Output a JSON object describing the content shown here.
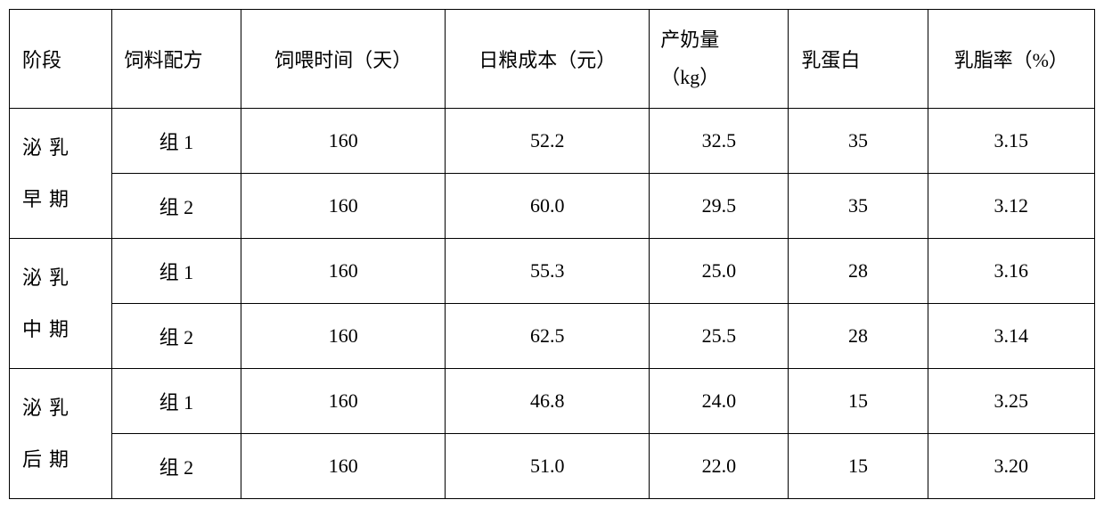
{
  "headers": {
    "stage": "阶段",
    "formula": "饲料配方",
    "days": "饲喂时间（天）",
    "cost": "日粮成本（元）",
    "yield_line1": "产奶量",
    "yield_line2": "（kg）",
    "protein": "乳蛋白",
    "fat": "乳脂率（%）"
  },
  "stages": {
    "early_line1": "泌乳",
    "early_line2": "早期",
    "mid_line1": "泌乳",
    "mid_line2": "中期",
    "late_line1": "泌乳",
    "late_line2": "后期"
  },
  "rows": {
    "r0": {
      "formula": "组 1",
      "days": "160",
      "cost": "52.2",
      "yield": "32.5",
      "protein": "35",
      "fat": "3.15"
    },
    "r1": {
      "formula": "组 2",
      "days": "160",
      "cost": "60.0",
      "yield": "29.5",
      "protein": "35",
      "fat": "3.12"
    },
    "r2": {
      "formula": "组 1",
      "days": "160",
      "cost": "55.3",
      "yield": "25.0",
      "protein": "28",
      "fat": "3.16"
    },
    "r3": {
      "formula": "组 2",
      "days": "160",
      "cost": "62.5",
      "yield": "25.5",
      "protein": "28",
      "fat": "3.14"
    },
    "r4": {
      "formula": "组 1",
      "days": "160",
      "cost": "46.8",
      "yield": "24.0",
      "protein": "15",
      "fat": "3.25"
    },
    "r5": {
      "formula": "组 2",
      "days": "160",
      "cost": "51.0",
      "yield": "22.0",
      "protein": "15",
      "fat": "3.20"
    }
  }
}
